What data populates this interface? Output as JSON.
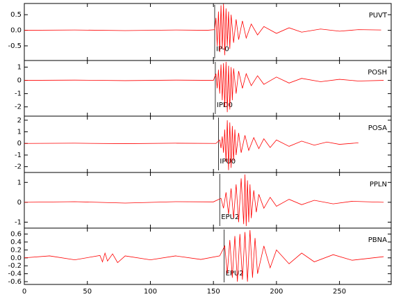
{
  "chart_data": [
    {
      "type": "line",
      "title": "PUVT",
      "color": "#ff0000",
      "xlim": [
        0,
        291
      ],
      "xticks": [
        0,
        50,
        100,
        150,
        200,
        250
      ],
      "ylim": [
        -0.97,
        0.86
      ],
      "yticks": [
        0.5,
        {
          "value": 0,
          "label": "0.0"
        },
        -0.5
      ],
      "annotations": [
        {
          "label": "IP-0",
          "x": 151
        }
      ],
      "x": [
        0,
        40,
        80,
        120,
        145,
        151,
        152,
        153,
        154,
        155,
        156,
        157,
        158,
        159,
        160,
        161,
        162,
        163,
        164,
        166,
        168,
        170,
        173,
        176,
        180,
        185,
        190,
        200,
        210,
        220,
        235,
        250,
        265,
        283
      ],
      "values": [
        0,
        0.01,
        -0.01,
        0.01,
        0,
        0.02,
        0.4,
        -0.5,
        0.6,
        -0.7,
        0.8,
        -0.6,
        0.85,
        -0.8,
        0.7,
        -0.5,
        0.6,
        -0.6,
        0.5,
        -0.4,
        0.35,
        -0.3,
        0.3,
        -0.25,
        0.2,
        -0.15,
        0.12,
        -0.1,
        0.08,
        -0.06,
        0.04,
        -0.03,
        0.02,
        0.01
      ]
    },
    {
      "type": "line",
      "title": "POSH",
      "color": "#ff0000",
      "xlim": [
        0,
        291
      ],
      "xticks": [
        0,
        50,
        100,
        150,
        200,
        250
      ],
      "ylim": [
        -2.7,
        1.5
      ],
      "yticks": [
        1,
        0,
        -1,
        -2
      ],
      "annotations": [
        {
          "label": "IPD0",
          "x": 151.5
        }
      ],
      "x": [
        0,
        40,
        80,
        120,
        150,
        152,
        153,
        154,
        155,
        156,
        157,
        158,
        159,
        160,
        161,
        162,
        163,
        164,
        165,
        166,
        168,
        170,
        173,
        176,
        180,
        185,
        190,
        200,
        210,
        220,
        235,
        250,
        265,
        285
      ],
      "values": [
        0,
        0.02,
        -0.02,
        0.02,
        0,
        0.5,
        -0.6,
        0.8,
        -1,
        1.2,
        -1.5,
        1.3,
        -2,
        1.4,
        -2.4,
        1.1,
        -2.2,
        1.0,
        -1.5,
        0.9,
        -1,
        0.7,
        -0.6,
        0.5,
        -0.4,
        0.35,
        -0.3,
        0.25,
        -0.2,
        0.15,
        -0.1,
        0.08,
        -0.05,
        0
      ]
    },
    {
      "type": "line",
      "title": "POSA",
      "color": "#ff0000",
      "xlim": [
        0,
        291
      ],
      "xticks": [
        0,
        50,
        100,
        150,
        200,
        250
      ],
      "ylim": [
        -2.5,
        2.35
      ],
      "yticks": [
        2,
        1,
        0,
        -1,
        -2
      ],
      "annotations": [
        {
          "label": "IPU0",
          "x": 154
        }
      ],
      "x": [
        0,
        40,
        80,
        120,
        152,
        155,
        156,
        157,
        158,
        159,
        160,
        161,
        162,
        163,
        164,
        165,
        166,
        167,
        168,
        170,
        172,
        175,
        178,
        182,
        186,
        190,
        195,
        200,
        210,
        220,
        230,
        240,
        250,
        265
      ],
      "values": [
        0,
        0.02,
        -0.02,
        0.02,
        0,
        0.3,
        -0.4,
        0.6,
        -0.8,
        1.2,
        -1.6,
        2.0,
        -2.3,
        1.8,
        -2.1,
        1.5,
        -1.5,
        1.2,
        -1.0,
        0.9,
        -0.8,
        0.7,
        -0.6,
        0.5,
        -0.45,
        0.4,
        -0.35,
        0.3,
        -0.25,
        0.2,
        -0.15,
        0.12,
        -0.08,
        0.05
      ]
    },
    {
      "type": "line",
      "title": "PPLN",
      "color": "#ff0000",
      "xlim": [
        0,
        291
      ],
      "xticks": [
        0,
        50,
        100,
        150,
        200,
        250
      ],
      "ylim": [
        -1.3,
        1.5
      ],
      "yticks": [
        1,
        0,
        -1
      ],
      "annotations": [
        {
          "label": "EPU2",
          "x": 155
        }
      ],
      "x": [
        0,
        40,
        80,
        120,
        150,
        156,
        158,
        160,
        162,
        164,
        166,
        168,
        170,
        172,
        174,
        175,
        176,
        177,
        178,
        179,
        180,
        182,
        184,
        186,
        190,
        195,
        200,
        210,
        220,
        230,
        245,
        260,
        285
      ],
      "values": [
        0,
        0.03,
        -0.04,
        0.03,
        0.02,
        0.2,
        -0.3,
        0.5,
        -0.6,
        0.7,
        -0.8,
        0.9,
        -1.0,
        1.2,
        -1.1,
        1.4,
        -1.2,
        1.1,
        -1.0,
        0.9,
        -0.8,
        0.6,
        -0.5,
        0.4,
        -0.3,
        0.25,
        -0.2,
        0.15,
        -0.12,
        0.1,
        -0.08,
        0.05,
        0
      ]
    },
    {
      "type": "line",
      "title": "PBNA",
      "color": "#ff0000",
      "xlim": [
        0,
        291
      ],
      "xticks": [
        0,
        50,
        100,
        150,
        200,
        250
      ],
      "ylim": [
        -0.67,
        0.75
      ],
      "yticks": [
        0.6,
        0.4,
        0.2,
        {
          "value": 0,
          "label": "0.0"
        },
        -0.2,
        -0.4,
        -0.6
      ],
      "annotations": [
        {
          "label": "EPU2",
          "x": 158.5
        }
      ],
      "x": [
        0,
        20,
        40,
        60,
        62,
        64,
        66,
        70,
        74,
        80,
        100,
        120,
        140,
        155,
        159,
        161,
        163,
        165,
        167,
        169,
        171,
        173,
        175,
        177,
        179,
        181,
        183,
        185,
        190,
        195,
        200,
        210,
        220,
        230,
        245,
        260,
        285
      ],
      "values": [
        0,
        0.05,
        -0.05,
        0.06,
        -0.1,
        0.12,
        -0.08,
        0.1,
        -0.12,
        0.05,
        -0.05,
        0.05,
        -0.04,
        0.05,
        0.3,
        -0.4,
        0.45,
        -0.5,
        0.55,
        -0.6,
        0.6,
        -0.55,
        0.65,
        -0.6,
        0.7,
        -0.5,
        0.5,
        -0.4,
        0.3,
        -0.25,
        0.2,
        -0.15,
        0.12,
        -0.1,
        0.08,
        -0.06,
        0.03
      ]
    }
  ]
}
